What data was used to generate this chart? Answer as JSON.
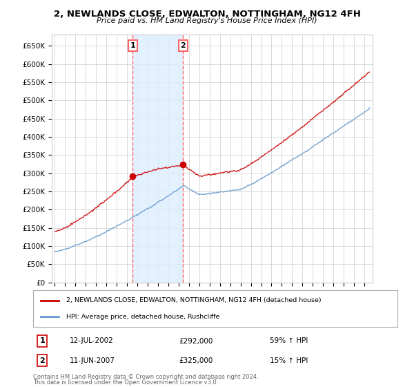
{
  "title": "2, NEWLANDS CLOSE, EDWALTON, NOTTINGHAM, NG12 4FH",
  "subtitle": "Price paid vs. HM Land Registry's House Price Index (HPI)",
  "ylim": [
    0,
    680000
  ],
  "yticks": [
    0,
    50000,
    100000,
    150000,
    200000,
    250000,
    300000,
    350000,
    400000,
    450000,
    500000,
    550000,
    600000,
    650000
  ],
  "ytick_labels": [
    "£0",
    "£50K",
    "£100K",
    "£150K",
    "£200K",
    "£250K",
    "£300K",
    "£350K",
    "£400K",
    "£450K",
    "£500K",
    "£550K",
    "£600K",
    "£650K"
  ],
  "sale1_year": 2002.54,
  "sale1_price": 292000,
  "sale2_year": 2007.44,
  "sale2_price": 325000,
  "sale1_date_str": "12-JUL-2002",
  "sale1_price_str": "£292,000",
  "sale1_hpi_str": "59% ↑ HPI",
  "sale2_date_str": "11-JUN-2007",
  "sale2_price_str": "£325,000",
  "sale2_hpi_str": "15% ↑ HPI",
  "legend_line1": "2, NEWLANDS CLOSE, EDWALTON, NOTTINGHAM, NG12 4FH (detached house)",
  "legend_line2": "HPI: Average price, detached house, Rushcliffe",
  "footer1": "Contains HM Land Registry data © Crown copyright and database right 2024.",
  "footer2": "This data is licensed under the Open Government Licence v3.0.",
  "line_color_red": "#cc0000",
  "line_color_blue": "#6699cc",
  "shade_color": "#ddeeff",
  "vline_color": "#ff6666",
  "background_color": "#ffffff",
  "grid_color": "#cccccc",
  "xlim_start": 1994.7,
  "xlim_end": 2025.8
}
